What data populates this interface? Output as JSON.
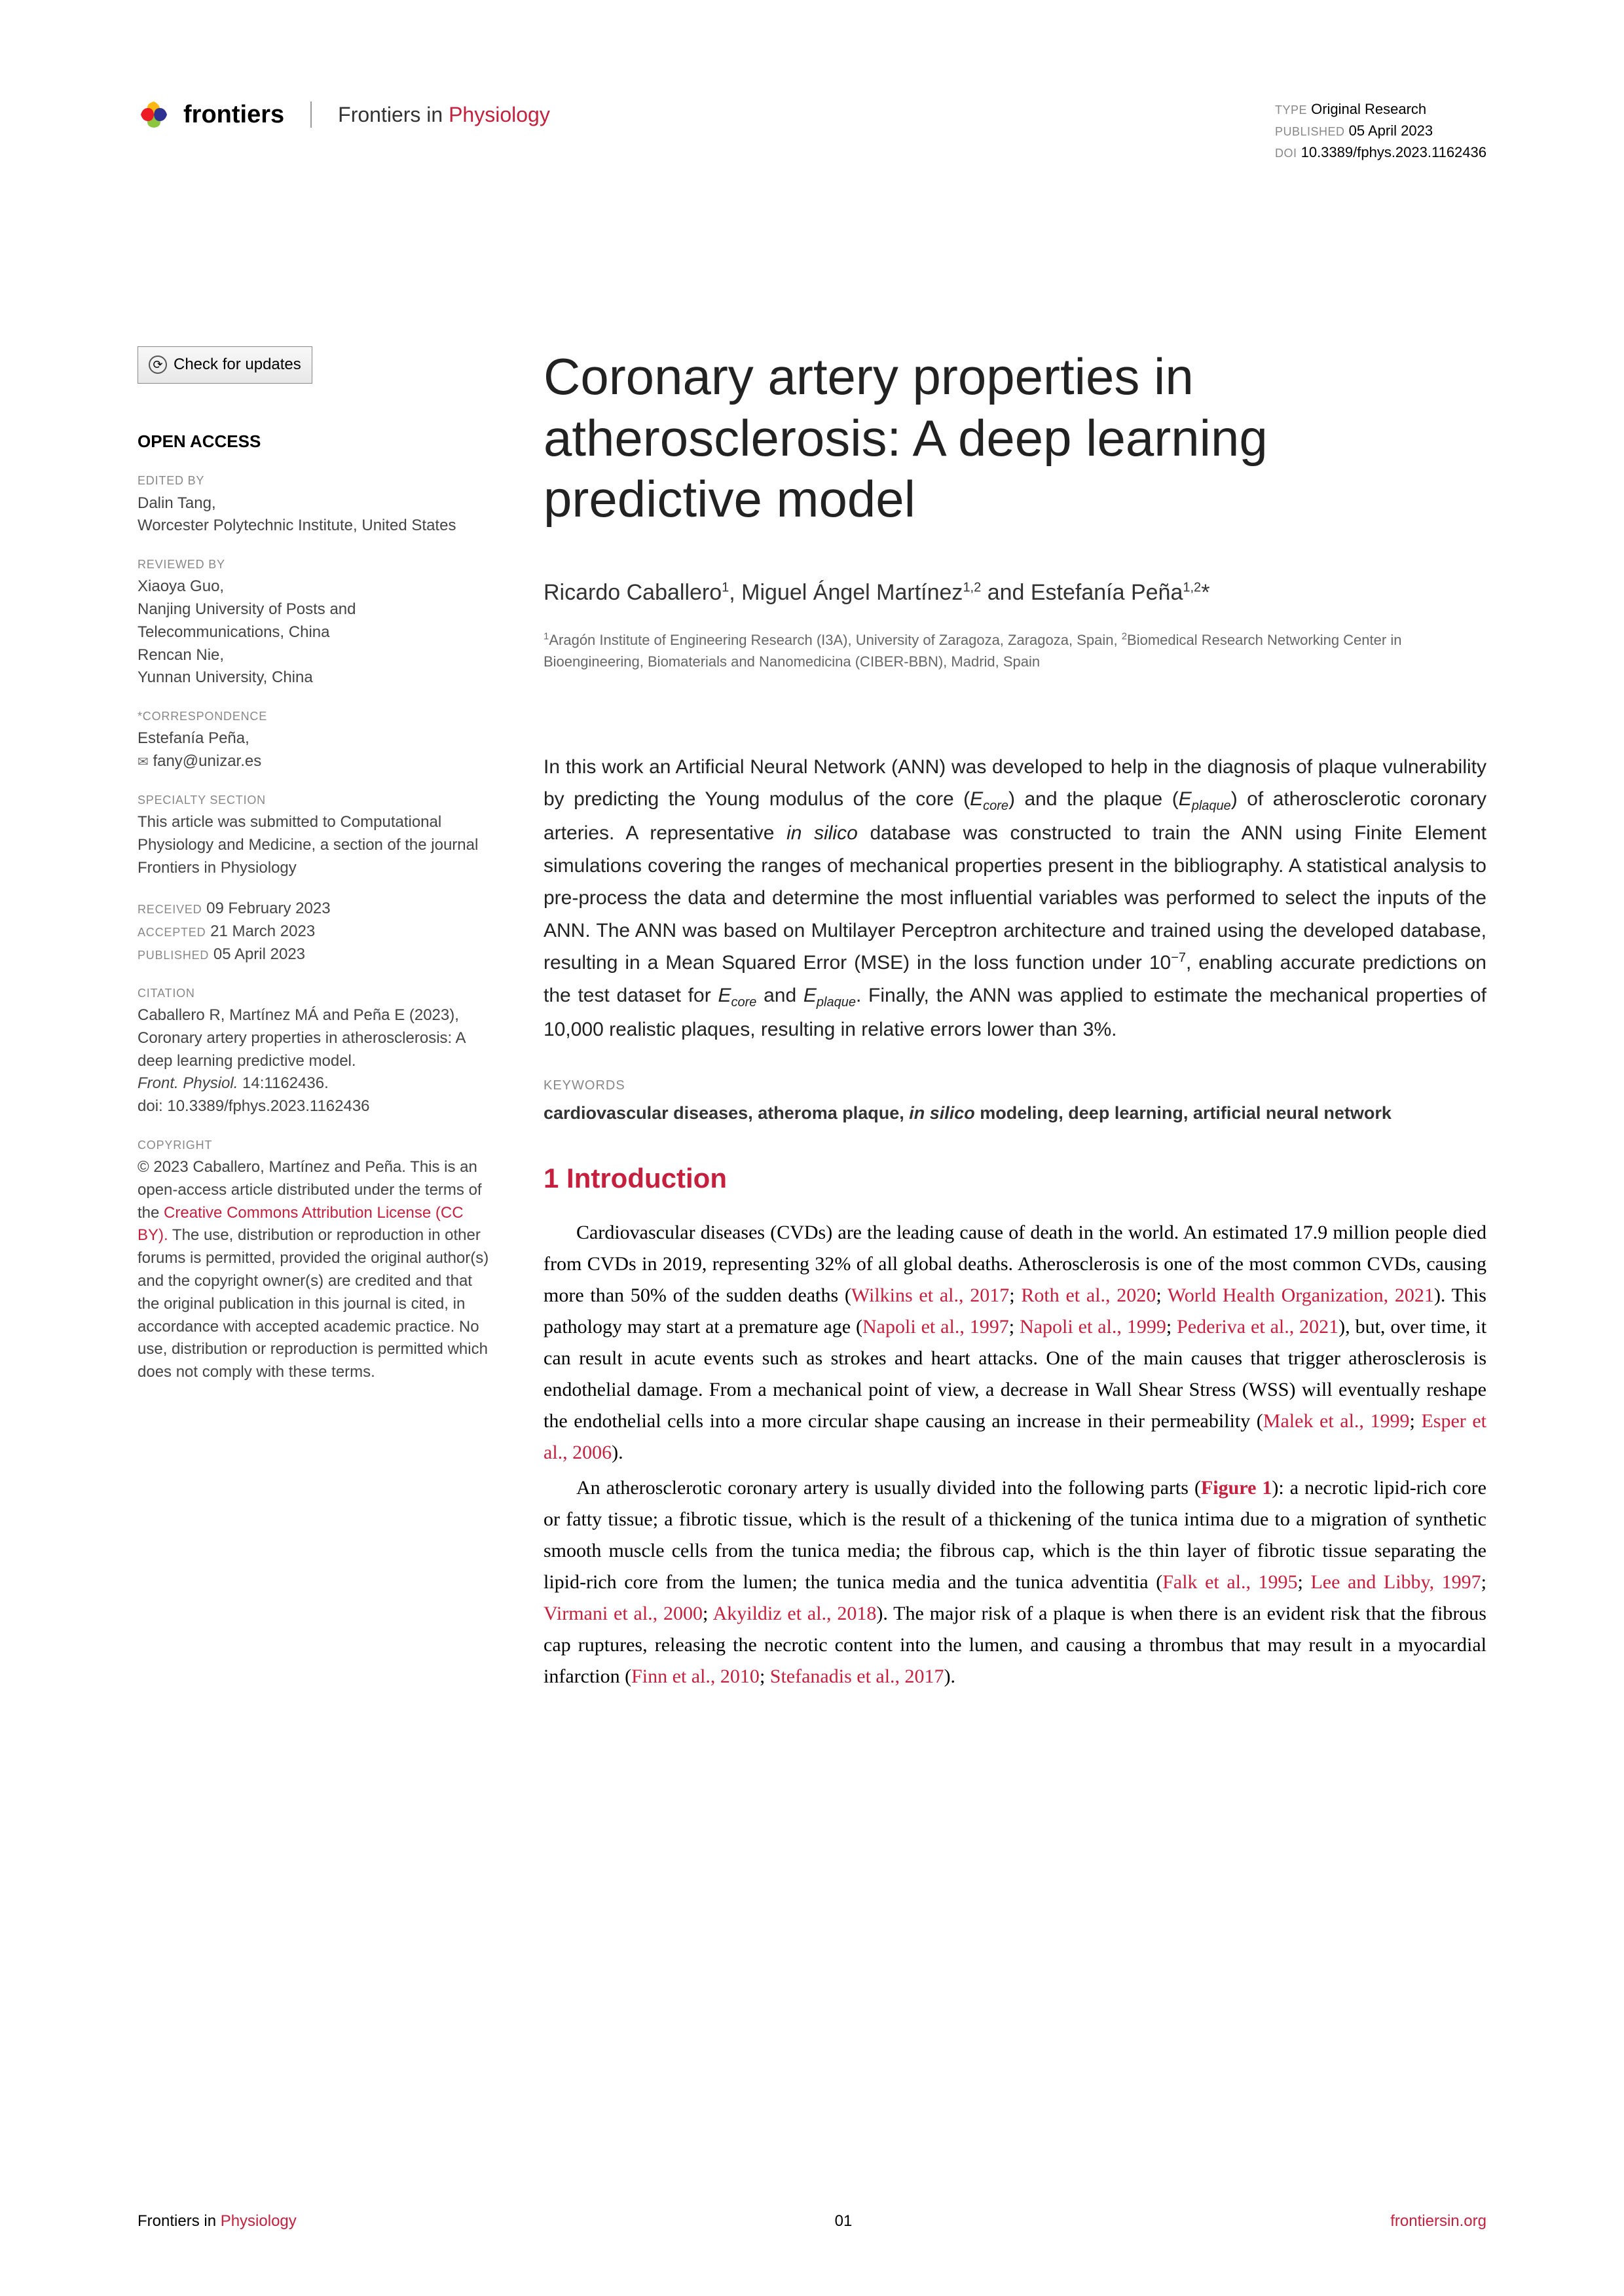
{
  "header": {
    "brand": "frontiers",
    "journal_prefix": "Frontiers in ",
    "journal_name": "Physiology",
    "type_label": "TYPE",
    "type_value": "Original Research",
    "published_label": "PUBLISHED",
    "published_value": "05 April 2023",
    "doi_label": "DOI",
    "doi_value": "10.3389/fphys.2023.1162436"
  },
  "check_updates": "Check for updates",
  "sidebar": {
    "open_access": "OPEN ACCESS",
    "edited_by_label": "EDITED BY",
    "edited_by": "Dalin Tang,\nWorcester Polytechnic Institute, United States",
    "reviewed_by_label": "REVIEWED BY",
    "reviewed_by": "Xiaoya Guo,\nNanjing University of Posts and Telecommunications, China\nRencan Nie,\nYunnan University, China",
    "correspondence_label": "*CORRESPONDENCE",
    "correspondence_name": "Estefanía Peña,",
    "correspondence_email": "fany@unizar.es",
    "specialty_label": "SPECIALTY SECTION",
    "specialty": "This article was submitted to Computational Physiology and Medicine, a section of the journal Frontiers in Physiology",
    "received_label": "RECEIVED",
    "received": "09 February 2023",
    "accepted_label": "ACCEPTED",
    "accepted": "21 March 2023",
    "published_label": "PUBLISHED",
    "published": "05 April 2023",
    "citation_label": "CITATION",
    "citation": "Caballero R, Martínez MÁ and Peña E (2023), Coronary artery properties in atherosclerosis: A deep learning predictive model.",
    "citation_journal": "Front. Physiol.",
    "citation_vol": " 14:1162436.",
    "citation_doi": "doi: 10.3389/fphys.2023.1162436",
    "copyright_label": "COPYRIGHT",
    "copyright_pre": "© 2023 Caballero, Martínez and Peña. This is an open-access article distributed under the terms of the ",
    "cc_link": "Creative Commons Attribution License (CC BY).",
    "copyright_post": " The use, distribution or reproduction in other forums is permitted, provided the original author(s) and the copyright owner(s) are credited and that the original publication in this journal is cited, in accordance with accepted academic practice. No use, distribution or reproduction is permitted which does not comply with these terms."
  },
  "title": "Coronary artery properties in atherosclerosis: A deep learning predictive model",
  "authors_html": "Ricardo Caballero<sup>1</sup>, Miguel Ángel Martínez<sup>1,2</sup> and Estefanía Peña<sup>1,2</sup>*",
  "affiliations_html": "<sup>1</sup>Aragón Institute of Engineering Research (I3A), University of Zaragoza, Zaragoza, Spain, <sup>2</sup>Biomedical Research Networking Center in Bioengineering, Biomaterials and Nanomedicina (CIBER-BBN), Madrid, Spain",
  "abstract_html": "In this work an Artificial Neural Network (ANN) was developed to help in the diagnosis of plaque vulnerability by predicting the Young modulus of the core (<i>E<sub>core</sub></i>) and the plaque (<i>E<sub>plaque</sub></i>) of atherosclerotic coronary arteries. A representative <i>in silico</i> database was constructed to train the ANN using Finite Element simulations covering the ranges of mechanical properties present in the bibliography. A statistical analysis to pre-process the data and determine the most influential variables was performed to select the inputs of the ANN. The ANN was based on Multilayer Perceptron architecture and trained using the developed database, resulting in a Mean Squared Error (MSE) in the loss function under 10<sup>−7</sup>, enabling accurate predictions on the test dataset for <i>E<sub>core</sub></i> and <i>E<sub>plaque</sub></i>. Finally, the ANN was applied to estimate the mechanical properties of 10,000 realistic plaques, resulting in relative errors lower than 3%.",
  "keywords_label": "KEYWORDS",
  "keywords_html": "cardiovascular diseases, atheroma plaque, <i>in silico</i> modeling, deep learning, artificial neural network",
  "section_heading": "1 Introduction",
  "body_p1_html": "Cardiovascular diseases (CVDs) are the leading cause of death in the world. An estimated 17.9 million people died from CVDs in 2019, representing 32% of all global deaths. Atherosclerosis is one of the most common CVDs, causing more than 50% of the sudden deaths (<span class=\"ref-link\">Wilkins et al., 2017</span>; <span class=\"ref-link\">Roth et al., 2020</span>; <span class=\"ref-link\">World Health Organization, 2021</span>). This pathology may start at a premature age (<span class=\"ref-link\">Napoli et al., 1997</span>; <span class=\"ref-link\">Napoli et al., 1999</span>; <span class=\"ref-link\">Pederiva et al., 2021</span>), but, over time, it can result in acute events such as strokes and heart attacks. One of the main causes that trigger atherosclerosis is endothelial damage. From a mechanical point of view, a decrease in Wall Shear Stress (WSS) will eventually reshape the endothelial cells into a more circular shape causing an increase in their permeability (<span class=\"ref-link\">Malek et al., 1999</span>; <span class=\"ref-link\">Esper et al., 2006</span>).",
  "body_p2_html": "An atherosclerotic coronary artery is usually divided into the following parts (<span class=\"fig-link\">Figure 1</span>): a necrotic lipid-rich core or fatty tissue; a fibrotic tissue, which is the result of a thickening of the tunica intima due to a migration of synthetic smooth muscle cells from the tunica media; the fibrous cap, which is the thin layer of fibrotic tissue separating the lipid-rich core from the lumen; the tunica media and the tunica adventitia (<span class=\"ref-link\">Falk et al., 1995</span>; <span class=\"ref-link\">Lee and Libby, 1997</span>; <span class=\"ref-link\">Virmani et al., 2000</span>; <span class=\"ref-link\">Akyildiz et al., 2018</span>). The major risk of a plaque is when there is an evident risk that the fibrous cap ruptures, releasing the necrotic content into the lumen, and causing a thrombus that may result in a myocardial infarction (<span class=\"ref-link\">Finn et al., 2010</span>; <span class=\"ref-link\">Stefanadis et al., 2017</span>).",
  "footer": {
    "left_prefix": "Frontiers in ",
    "left_name": "Physiology",
    "page_num": "01",
    "right": "frontiersin.org"
  },
  "colors": {
    "accent_red": "#c5203e",
    "text": "#000000",
    "muted": "#888888",
    "logo_yellow": "#fdb813",
    "logo_green": "#8cc63f",
    "logo_red": "#ed1c24",
    "logo_blue": "#2e3192"
  }
}
